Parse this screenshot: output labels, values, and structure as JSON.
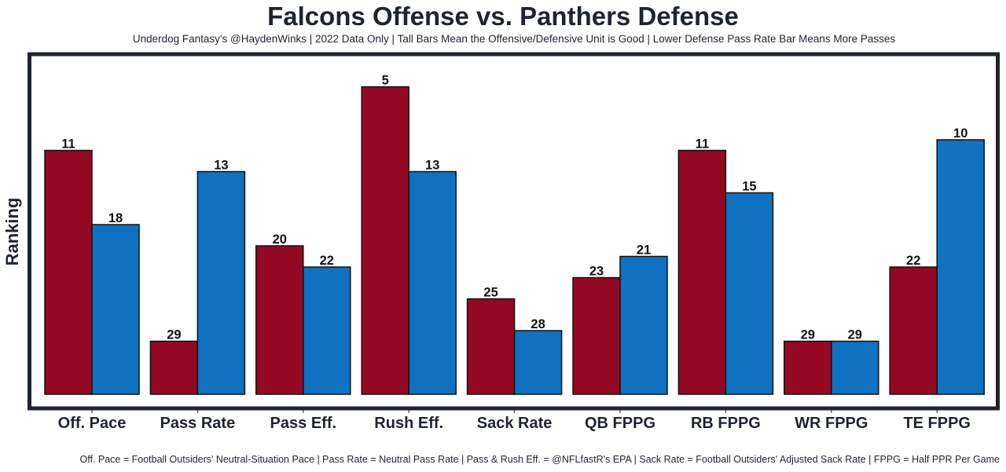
{
  "chart_data": {
    "type": "bar",
    "title": "Falcons Offense vs. Panthers Defense",
    "subtitle": "Underdog Fantasy's @HaydenWinks | 2022 Data Only | Tall Bars Mean the Offensive/Defensive Unit is Good | Lower Defense Pass Rate Bar Means More Passes",
    "xlabel": "",
    "ylabel": "Ranking",
    "categories": [
      "Off. Pace",
      "Pass Rate",
      "Pass Eff.",
      "Rush Eff.",
      "Sack Rate",
      "QB FPPG",
      "RB FPPG",
      "WR FPPG",
      "TE FPPG"
    ],
    "series": [
      {
        "name": "Falcons Offense",
        "color": "#940823",
        "values": [
          11,
          29,
          20,
          5,
          25,
          23,
          11,
          29,
          22
        ]
      },
      {
        "name": "Panthers Defense",
        "color": "#0f71c1",
        "values": [
          18,
          13,
          22,
          13,
          28,
          21,
          15,
          29,
          10
        ]
      }
    ],
    "value_note": "Bar height = 34 - rank (lower rank number = taller bar)",
    "height_base": 34,
    "ylim": [
      0,
      34
    ],
    "y_ticks_visible": false,
    "grid": false,
    "legend": "none",
    "footnote": "Off. Pace = Football Outsiders' Neutral-Situation Pace | Pass Rate = Neutral Pass Rate | Pass & Rush Eff. = @NFLfastR's EPA | Sack Rate = Football Outsiders' Adjusted Sack Rate | FPPG = Half PPR Per Game"
  },
  "colors": {
    "frame": "#1f2430",
    "offense": "#940823",
    "defense": "#0f71c1",
    "text": "#1f2430"
  }
}
